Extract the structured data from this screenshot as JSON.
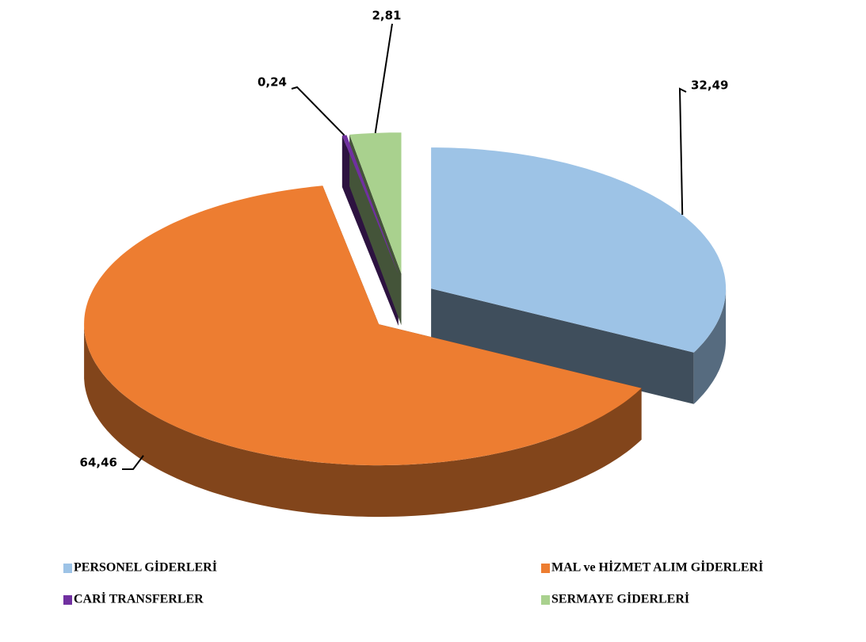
{
  "chart_data": {
    "type": "pie3d",
    "categories": [
      "PERSONEL GİDERLERİ",
      "MAL ve HİZMET ALIM GİDERLERİ",
      "CARİ TRANSFERLER",
      "SERMAYE GİDERLERİ"
    ],
    "values": [
      32.49,
      64.46,
      0.24,
      2.81
    ],
    "value_labels": [
      "32,49",
      "64,46",
      "0,24",
      "2,81"
    ],
    "colors": [
      "#9dc3e6",
      "#ed7d31",
      "#7030a0",
      "#a9d18e"
    ],
    "legend": "bottom"
  }
}
